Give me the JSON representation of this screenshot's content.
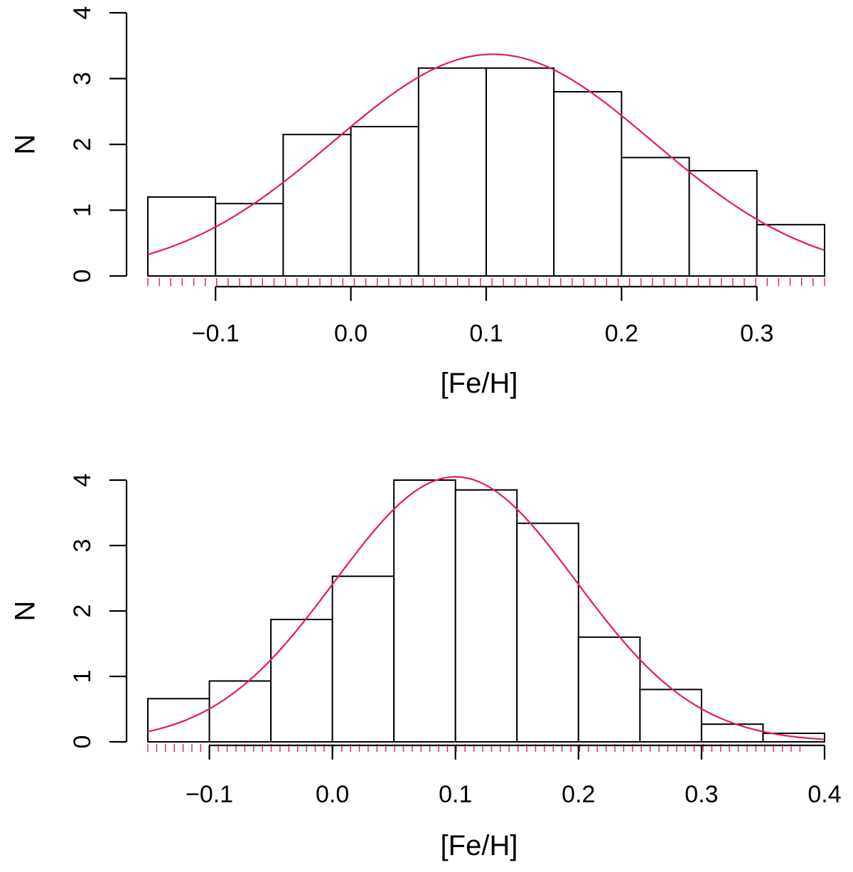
{
  "colors": {
    "bar_fill": "#ffffff",
    "bar_stroke": "#000000",
    "fit_curve": "#e8195a",
    "rug": "#e8195a"
  },
  "chart_data": [
    {
      "type": "bar",
      "subtype": "histogram",
      "xlabel": "[Fe/H]",
      "ylabel": "N",
      "xlim": [
        -0.15,
        0.35
      ],
      "ylim": [
        0,
        4
      ],
      "xticks": [
        -0.1,
        0.0,
        0.1,
        0.2,
        0.3
      ],
      "xtick_labels": [
        "−0.1",
        "0.0",
        "0.1",
        "0.2",
        "0.3"
      ],
      "yticks": [
        0,
        1,
        2,
        3,
        4
      ],
      "ytick_labels": [
        "0",
        "1",
        "2",
        "3",
        "4"
      ],
      "bin_edges": [
        -0.15,
        -0.1,
        -0.05,
        0.0,
        0.05,
        0.1,
        0.15,
        0.2,
        0.25,
        0.3,
        0.35
      ],
      "values": [
        1.2,
        1.1,
        2.15,
        2.27,
        3.16,
        3.16,
        2.8,
        1.8,
        1.6,
        0.78
      ],
      "fit": {
        "type": "normal",
        "mean": 0.105,
        "sd": 0.118,
        "peak": 3.37
      },
      "rug_range": [
        -0.15,
        0.35
      ],
      "rug_count": 60
    },
    {
      "type": "bar",
      "subtype": "histogram",
      "xlabel": "[Fe/H]",
      "ylabel": "N",
      "xlim": [
        -0.15,
        0.4
      ],
      "ylim": [
        0,
        4
      ],
      "xticks": [
        -0.1,
        0.0,
        0.1,
        0.2,
        0.3,
        0.4
      ],
      "xtick_labels": [
        "−0.1",
        "0.0",
        "0.1",
        "0.2",
        "0.3",
        "0.4"
      ],
      "yticks": [
        0,
        1,
        2,
        3,
        4
      ],
      "ytick_labels": [
        "0",
        "1",
        "2",
        "3",
        "4"
      ],
      "bin_edges": [
        -0.15,
        -0.1,
        -0.05,
        0.0,
        0.05,
        0.1,
        0.15,
        0.2,
        0.25,
        0.3,
        0.35,
        0.4
      ],
      "values": [
        0.66,
        0.93,
        1.87,
        2.53,
        4.0,
        3.85,
        3.34,
        1.6,
        0.8,
        0.27,
        0.13
      ],
      "fit": {
        "type": "normal",
        "mean": 0.1,
        "sd": 0.098,
        "peak": 4.05
      },
      "rug_range": [
        -0.15,
        0.38
      ],
      "rug_count": 75
    }
  ]
}
